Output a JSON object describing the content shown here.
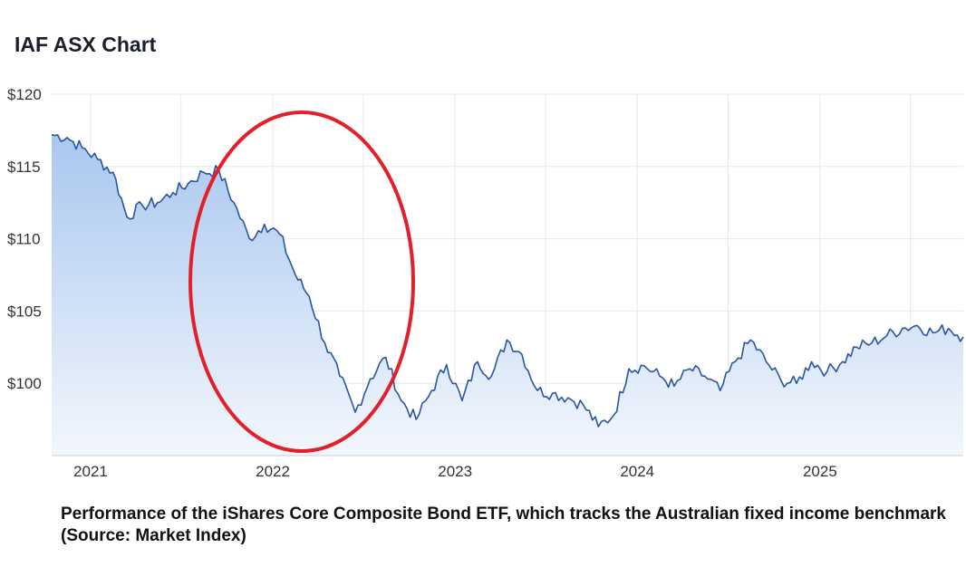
{
  "chart_title": "IAF ASX Chart",
  "caption": "Performance of the iShares Core Composite Bond ETF, which tracks the Australian fixed income benchmark (Source: Market Index)",
  "colors": {
    "line": "#2a55a0",
    "area_top": "#a9c7ef",
    "area_bottom": "#f3f7fd",
    "grid": "#e6e9ee",
    "highlight": "#e3202a"
  },
  "chart_data": {
    "type": "area",
    "title": "IAF ASX Chart",
    "xlabel": "",
    "ylabel": "",
    "x_ticks": [
      "2021",
      "2022",
      "2023",
      "2024",
      "2025"
    ],
    "y_ticks": [
      "$100",
      "$105",
      "$110",
      "$115",
      "$120"
    ],
    "ylim": [
      95,
      120
    ],
    "xlim": [
      "2020-10-15",
      "2025-10-15"
    ],
    "grid": true,
    "annotation": {
      "type": "ellipse",
      "around": [
        "2021-09",
        "2022-09"
      ],
      "color": "#e3202a"
    },
    "series": [
      {
        "x": [
          "2020-10",
          "2020-11",
          "2020-12",
          "2021-01",
          "2021-02",
          "2021-03",
          "2021-04",
          "2021-05",
          "2021-06",
          "2021-07",
          "2021-08",
          "2021-09",
          "2021-10",
          "2021-11",
          "2021-12",
          "2022-01",
          "2022-02",
          "2022-03",
          "2022-04",
          "2022-05",
          "2022-06",
          "2022-07",
          "2022-08",
          "2022-09",
          "2022-10",
          "2022-11",
          "2022-12",
          "2023-01",
          "2023-02",
          "2023-03",
          "2023-04",
          "2023-05",
          "2023-06",
          "2023-07",
          "2023-08",
          "2023-09",
          "2023-10",
          "2023-11",
          "2023-12",
          "2024-01",
          "2024-02",
          "2024-03",
          "2024-04",
          "2024-05",
          "2024-06",
          "2024-07",
          "2024-08",
          "2024-09",
          "2024-10",
          "2024-11",
          "2024-12",
          "2025-01",
          "2025-02",
          "2025-03",
          "2025-04",
          "2025-05",
          "2025-06",
          "2025-07",
          "2025-08",
          "2025-09",
          "2025-10"
        ],
        "values": [
          117.2,
          117.0,
          116.3,
          115.5,
          114.6,
          111.5,
          112.3,
          112.5,
          113.2,
          113.8,
          114.6,
          114.7,
          112.5,
          110.0,
          111.0,
          110.3,
          107.5,
          106.0,
          102.8,
          100.5,
          98.0,
          100.3,
          101.8,
          98.8,
          97.5,
          99.5,
          101.3,
          98.8,
          101.5,
          100.5,
          103.0,
          102.0,
          99.5,
          99.3,
          99.0,
          98.5,
          97.0,
          97.8,
          101.0,
          101.2,
          100.5,
          99.8,
          101.0,
          100.5,
          99.5,
          101.5,
          103.0,
          101.5,
          100.2,
          100.0,
          101.5,
          100.8,
          101.5,
          102.5,
          102.8,
          103.3,
          103.8,
          104.0,
          103.5,
          103.8,
          103.2
        ]
      }
    ]
  }
}
